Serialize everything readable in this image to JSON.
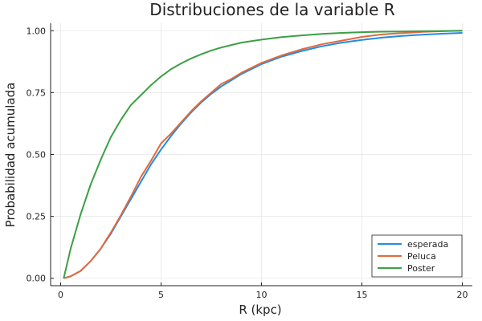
{
  "chart_data": {
    "type": "line",
    "title": "Distribuciones de la variable R",
    "xlabel": "R (kpc)",
    "ylabel": "Probabilidad acumulada",
    "xlim": [
      -0.5,
      20.5
    ],
    "ylim": [
      -0.03,
      1.03
    ],
    "xticks": [
      0,
      5,
      10,
      15,
      20
    ],
    "xtick_labels": [
      "0",
      "5",
      "10",
      "15",
      "20"
    ],
    "yticks": [
      0,
      0.25,
      0.5,
      0.75,
      1.0
    ],
    "ytick_labels": [
      "0.00",
      "0.25",
      "0.50",
      "0.75",
      "1.00"
    ],
    "grid": true,
    "legend_position": "bottom-right",
    "series": [
      {
        "name": "esperada",
        "color": "#1f8ce6",
        "x": [
          0.15,
          0.5,
          1,
          1.5,
          2,
          2.5,
          3,
          3.5,
          4,
          4.5,
          5,
          5.5,
          6,
          6.5,
          7,
          7.5,
          8,
          8.5,
          9,
          9.5,
          10,
          11,
          12,
          13,
          14,
          15,
          16,
          17,
          18,
          19,
          20
        ],
        "y": [
          0.0,
          0.008,
          0.03,
          0.07,
          0.12,
          0.18,
          0.25,
          0.32,
          0.39,
          0.46,
          0.52,
          0.575,
          0.625,
          0.67,
          0.71,
          0.745,
          0.775,
          0.8,
          0.825,
          0.845,
          0.865,
          0.895,
          0.918,
          0.937,
          0.952,
          0.963,
          0.972,
          0.979,
          0.984,
          0.988,
          0.991
        ]
      },
      {
        "name": "Peluca",
        "color": "#e2693b",
        "x": [
          0.15,
          0.5,
          1,
          1.5,
          2,
          2.5,
          3,
          3.5,
          4,
          4.5,
          5,
          5.5,
          6,
          6.5,
          7,
          7.5,
          8,
          8.5,
          9,
          9.5,
          10,
          11,
          12,
          13,
          14,
          15,
          16,
          17,
          18,
          19,
          20
        ],
        "y": [
          0.0,
          0.008,
          0.03,
          0.07,
          0.12,
          0.185,
          0.255,
          0.33,
          0.41,
          0.475,
          0.545,
          0.585,
          0.63,
          0.675,
          0.715,
          0.75,
          0.785,
          0.805,
          0.83,
          0.85,
          0.87,
          0.9,
          0.925,
          0.945,
          0.96,
          0.975,
          0.985,
          0.99,
          0.995,
          0.998,
          1.0
        ]
      },
      {
        "name": "Poster",
        "color": "#3b9f45",
        "x": [
          0.15,
          0.5,
          1,
          1.5,
          2,
          2.5,
          3,
          3.5,
          4,
          4.5,
          5,
          5.5,
          6,
          6.5,
          7,
          7.5,
          8,
          8.5,
          9,
          9.5,
          10,
          11,
          12,
          13,
          14,
          15,
          16,
          17,
          18,
          19,
          20
        ],
        "y": [
          0.0,
          0.12,
          0.26,
          0.38,
          0.48,
          0.57,
          0.64,
          0.7,
          0.74,
          0.78,
          0.815,
          0.845,
          0.868,
          0.888,
          0.905,
          0.92,
          0.932,
          0.942,
          0.952,
          0.958,
          0.964,
          0.974,
          0.981,
          0.987,
          0.991,
          0.994,
          0.996,
          0.997,
          0.998,
          0.999,
          1.0
        ]
      }
    ]
  }
}
